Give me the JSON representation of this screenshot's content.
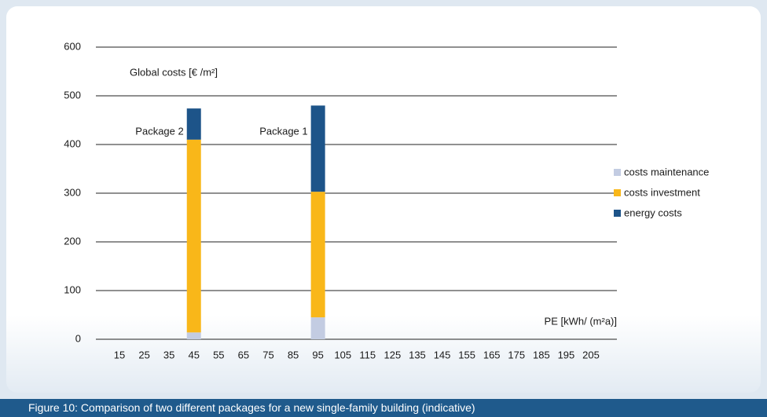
{
  "chart_data": {
    "type": "stacked_bar",
    "y_axis_label": "Global costs [€ /m²]",
    "x_axis_label": "PE [kWh/ (m²a)]",
    "caption": "Figure 10: Comparison of two different packages for a new single-family building (indicative)",
    "annotations": [
      {
        "text": "Package 2",
        "category": 45
      },
      {
        "text": "Package 1",
        "category": 95
      }
    ],
    "categories": [
      15,
      25,
      35,
      45,
      55,
      65,
      75,
      85,
      95,
      105,
      115,
      125,
      135,
      145,
      155,
      165,
      175,
      185,
      195,
      205
    ],
    "series": [
      {
        "name": "costs maintenance",
        "color": "#c3cce2",
        "values": [
          null,
          null,
          null,
          14,
          null,
          null,
          null,
          null,
          45,
          null,
          null,
          null,
          null,
          null,
          null,
          null,
          null,
          null,
          null,
          null
        ]
      },
      {
        "name": "costs investment",
        "color": "#f9b719",
        "values": [
          null,
          null,
          null,
          396,
          null,
          null,
          null,
          null,
          258,
          null,
          null,
          null,
          null,
          null,
          null,
          null,
          null,
          null,
          null,
          null
        ]
      },
      {
        "name": "energy costs",
        "color": "#1d5489",
        "values": [
          null,
          null,
          null,
          64,
          null,
          null,
          null,
          null,
          177,
          null,
          null,
          null,
          null,
          null,
          null,
          null,
          null,
          null,
          null,
          null
        ]
      }
    ],
    "ylim": [
      0,
      600
    ],
    "yticks": [
      0,
      100,
      200,
      300,
      400,
      500,
      600
    ],
    "grid": true
  }
}
